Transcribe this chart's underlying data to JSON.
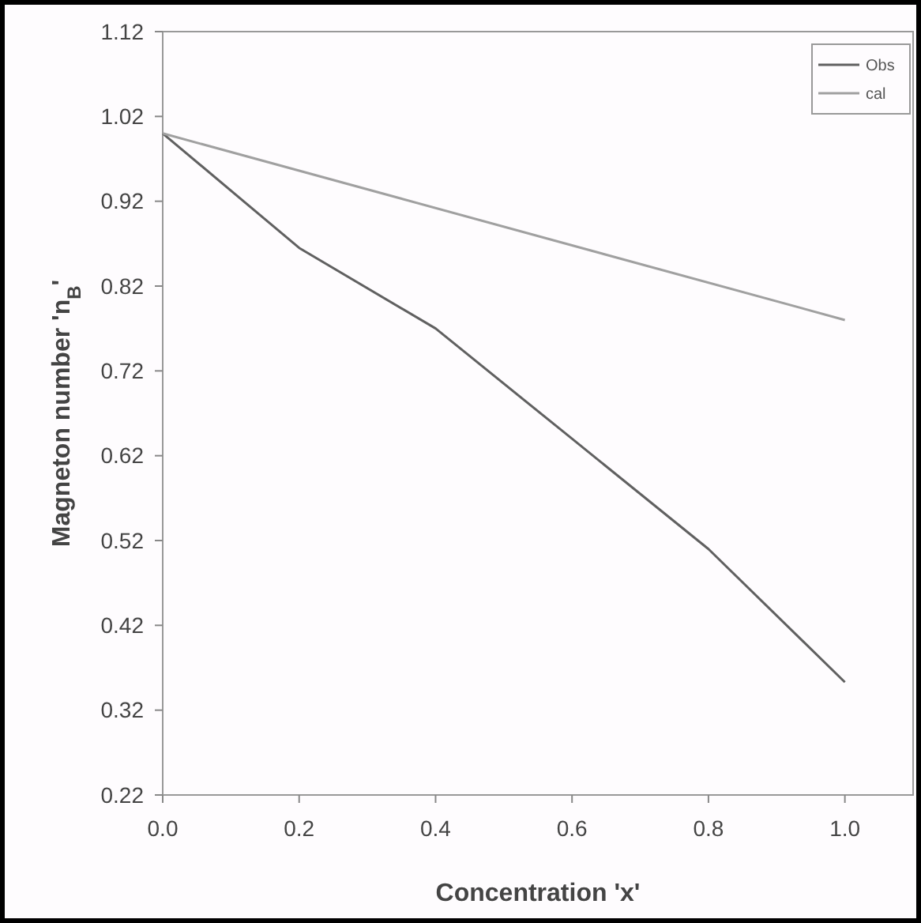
{
  "chart_data": {
    "type": "line",
    "xlabel": "Concentration 'x'",
    "ylabel": "Magneton number 'n$_{B}$'",
    "x": [
      0,
      0.2,
      0.4,
      0.6,
      0.8,
      1.0
    ],
    "series": [
      {
        "name": "Obs",
        "color": "#606060",
        "values": [
          1.0,
          0.865,
          0.77,
          0.64,
          0.51,
          0.353
        ]
      },
      {
        "name": "cal",
        "color": "#a0a0a0",
        "x": [
          0,
          1.0
        ],
        "values": [
          1.0,
          0.78
        ]
      }
    ],
    "xlim": [
      0,
      1.1
    ],
    "xticks": [
      {
        "value": 0,
        "label": "0.0"
      },
      0.2,
      0.4,
      0.6,
      0.8,
      {
        "value": 1,
        "label": "1.0"
      }
    ],
    "ylim": [
      0.22,
      1.12
    ],
    "yticks": [
      0.22,
      0.32,
      0.42,
      0.52,
      0.62,
      0.72,
      0.82,
      0.92,
      1.02,
      1.12
    ],
    "legend": "top right",
    "marker": "none",
    "line_style": "solid",
    "grid": false
  }
}
